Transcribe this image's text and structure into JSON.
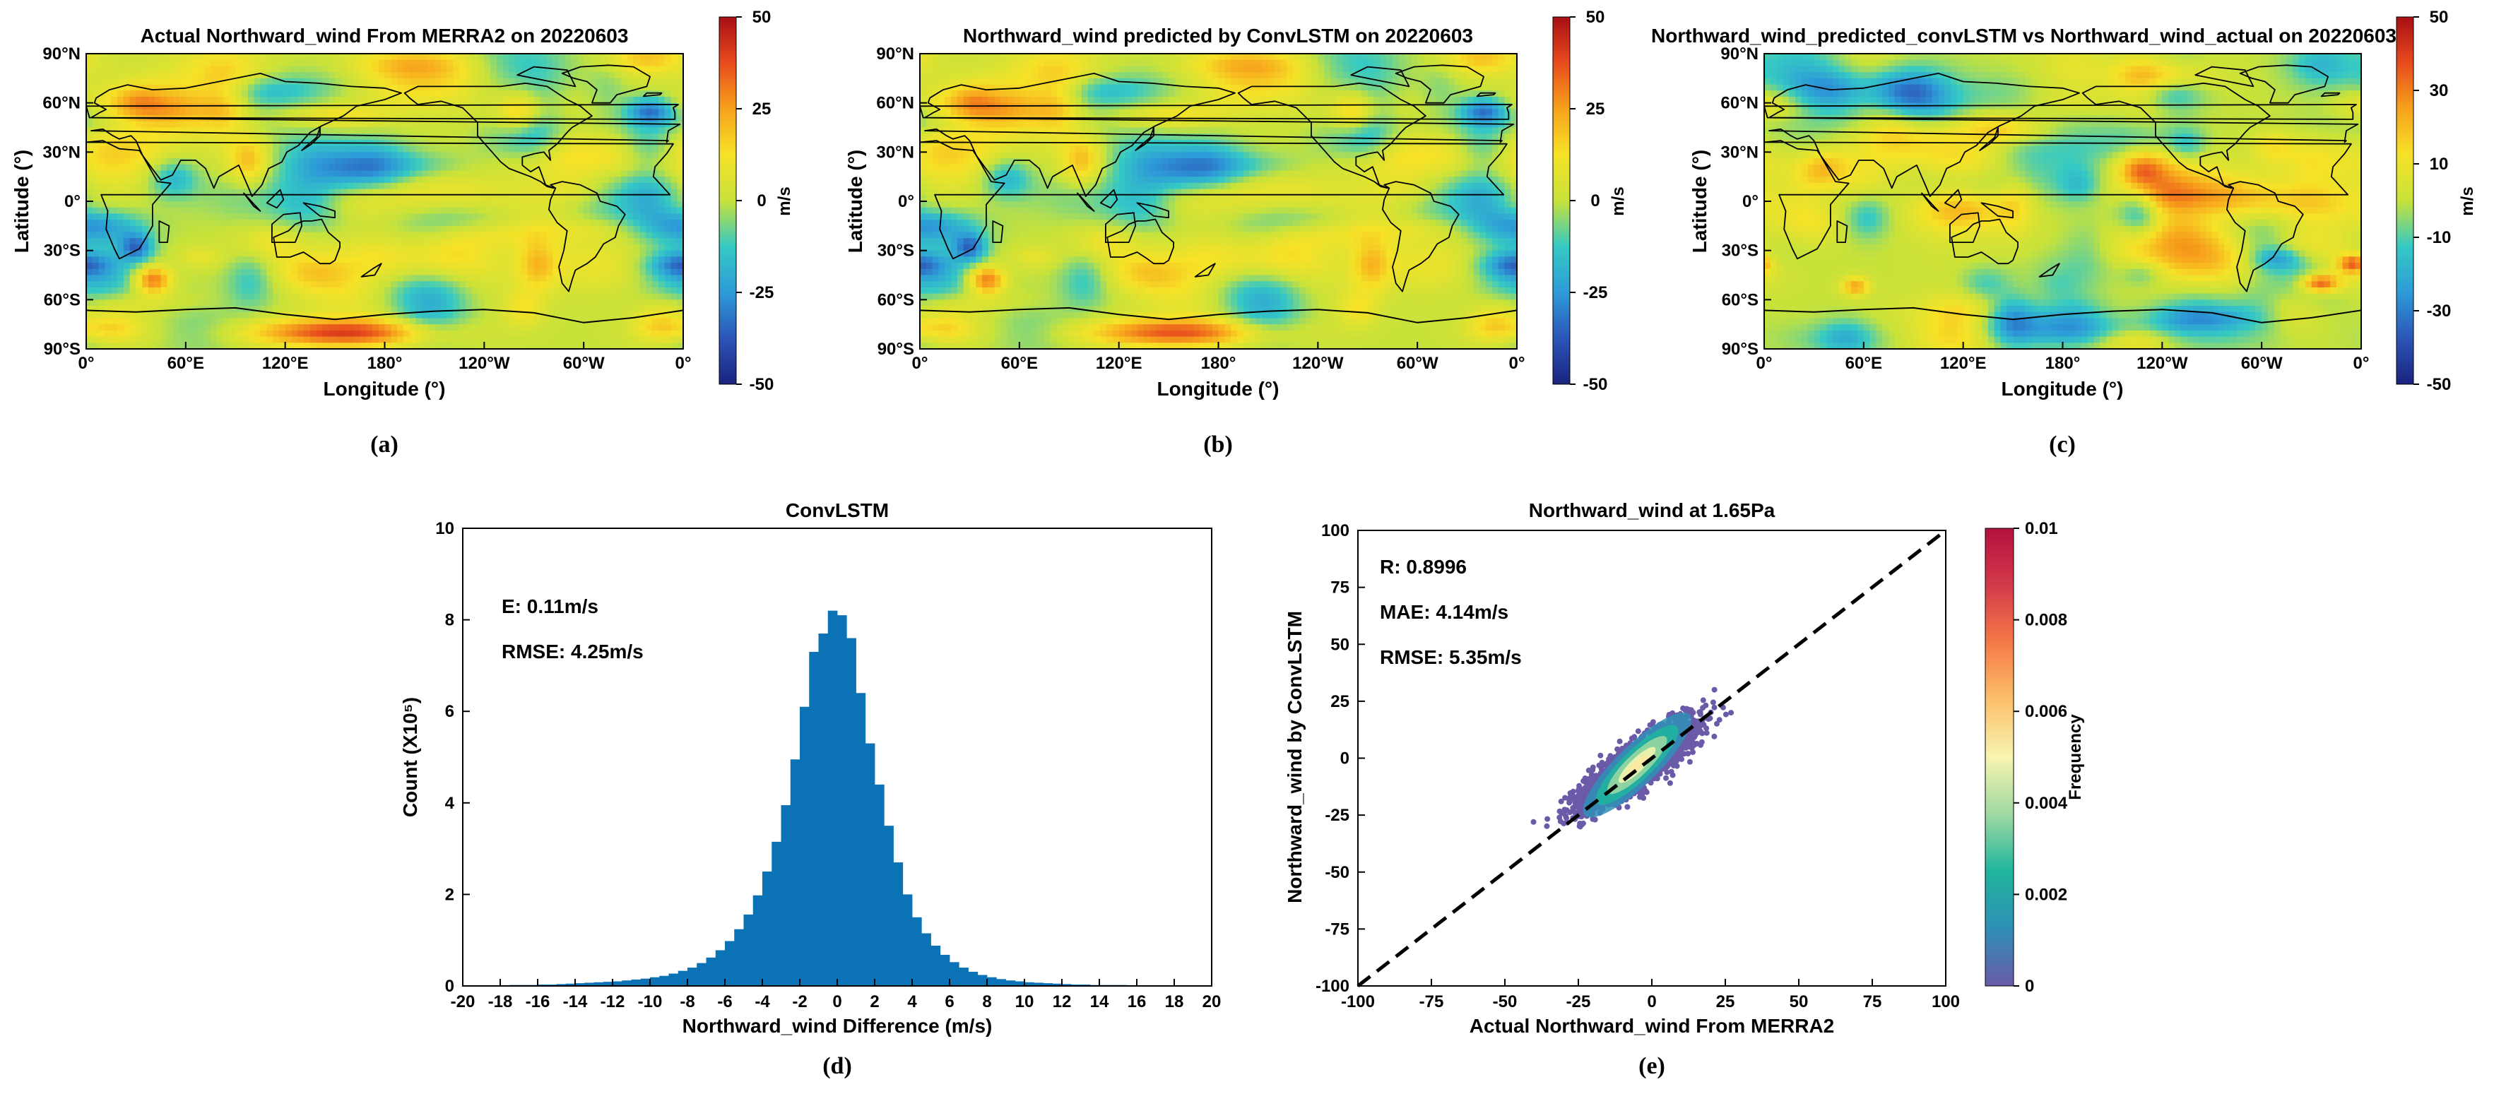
{
  "chart_data": [
    {
      "type": "heatmap",
      "panel_label": "(a)",
      "title": "Actual Northward_wind From MERRA2 on 20220603",
      "xlabel": "Longitude (°)",
      "ylabel": "Latitude (°)",
      "x_ticks": [
        "0°",
        "60°E",
        "120°E",
        "180°",
        "120°W",
        "60°W",
        "0°"
      ],
      "y_ticks": [
        "90°N",
        "60°N",
        "30°N",
        "0°",
        "30°S",
        "60°S",
        "90°S"
      ],
      "colorbar": {
        "label": "m/s",
        "ticks": [
          "50",
          "25",
          "0",
          "-25",
          "-50"
        ],
        "range": [
          -50,
          50
        ]
      },
      "seed": 11,
      "south_band": 1.0
    },
    {
      "type": "heatmap",
      "panel_label": "(b)",
      "title": "Northward_wind predicted by ConvLSTM on 20220603",
      "xlabel": "Longitude (°)",
      "ylabel": "Latitude (°)",
      "x_ticks": [
        "0°",
        "60°E",
        "120°E",
        "180°",
        "120°W",
        "60°W",
        "0°"
      ],
      "y_ticks": [
        "90°N",
        "60°N",
        "30°N",
        "0°",
        "30°S",
        "60°S",
        "90°S"
      ],
      "colorbar": {
        "label": "m/s",
        "ticks": [
          "50",
          "25",
          "0",
          "-25",
          "-50"
        ],
        "range": [
          -50,
          50
        ]
      },
      "seed": 11,
      "south_band": 0.9
    },
    {
      "type": "heatmap",
      "panel_label": "(c)",
      "title": "Northward_wind_predicted_convLSTM vs Northward_wind_actual on 20220603",
      "xlabel": "Longitude (°)",
      "ylabel": "Latitude (°)",
      "x_ticks": [
        "0°",
        "60°E",
        "120°E",
        "180°",
        "120°W",
        "60°W",
        "0°"
      ],
      "y_ticks": [
        "90°N",
        "60°N",
        "30°N",
        "0°",
        "30°S",
        "60°S",
        "90°S"
      ],
      "colorbar": {
        "label": "m/s",
        "ticks": [
          "50",
          "30",
          "10",
          "-10",
          "-30",
          "-50"
        ],
        "range": [
          -50,
          50
        ]
      },
      "seed": 37,
      "south_band": 0.0
    },
    {
      "type": "bar",
      "panel_label": "(d)",
      "title": "ConvLSTM",
      "xlabel": "Northward_wind Difference (m/s)",
      "ylabel": "Count (X10⁵)",
      "xlim": [
        -20,
        20
      ],
      "ylim": [
        0,
        10
      ],
      "x_ticks": [
        -20,
        -18,
        -16,
        -14,
        -12,
        -10,
        -8,
        -6,
        -4,
        -2,
        0,
        2,
        4,
        6,
        8,
        10,
        12,
        14,
        16,
        18,
        20
      ],
      "y_ticks": [
        0,
        2,
        4,
        6,
        8,
        10
      ],
      "bin_width": 0.5,
      "bin_start": -20,
      "counts": [
        0.01,
        0.01,
        0.01,
        0.01,
        0.01,
        0.02,
        0.02,
        0.02,
        0.03,
        0.03,
        0.04,
        0.05,
        0.06,
        0.07,
        0.08,
        0.09,
        0.1,
        0.12,
        0.14,
        0.16,
        0.19,
        0.22,
        0.27,
        0.33,
        0.4,
        0.5,
        0.62,
        0.78,
        0.98,
        1.24,
        1.56,
        1.98,
        2.5,
        3.15,
        3.95,
        4.95,
        6.1,
        7.3,
        7.7,
        8.2,
        8.1,
        7.6,
        6.4,
        5.3,
        4.4,
        3.5,
        2.7,
        2.0,
        1.5,
        1.15,
        0.88,
        0.68,
        0.52,
        0.4,
        0.31,
        0.24,
        0.19,
        0.15,
        0.12,
        0.1,
        0.08,
        0.07,
        0.06,
        0.05,
        0.04,
        0.03,
        0.03,
        0.02,
        0.02,
        0.02,
        0.02,
        0.01,
        0.01,
        0.01,
        0.01,
        0.01,
        0.01,
        0.01,
        0.01,
        0.01
      ],
      "annotations": [
        "E: 0.11m/s",
        "RMSE: 4.25m/s"
      ]
    },
    {
      "type": "scatter",
      "panel_label": "(e)",
      "title": "Northward_wind at 1.65Pa",
      "xlabel": "Actual Northward_wind From MERRA2",
      "ylabel": "Northward_wind by ConvLSTM",
      "xlim": [
        -100,
        100
      ],
      "ylim": [
        -100,
        100
      ],
      "x_ticks": [
        -100,
        -75,
        -50,
        -25,
        0,
        25,
        50,
        75,
        100
      ],
      "y_ticks": [
        -100,
        -75,
        -50,
        -25,
        0,
        25,
        50,
        75,
        100
      ],
      "reference_line": {
        "from": [
          -100,
          -100
        ],
        "to": [
          100,
          100
        ],
        "style": "dashed"
      },
      "annotations": [
        "R: 0.8996",
        "MAE: 4.14m/s",
        "RMSE: 5.35m/s"
      ],
      "colorbar": {
        "label": "Frequency",
        "ticks": [
          "0.01",
          "0.008",
          "0.006",
          "0.004",
          "0.002",
          "0"
        ],
        "range": [
          0,
          0.01
        ]
      },
      "cloud": {
        "center": [
          -5,
          -3
        ],
        "sd_along": 13,
        "sd_across": 3.6,
        "slope_deg": 44,
        "x_range": [
          -50,
          35
        ],
        "y_range": [
          -33,
          37
        ]
      }
    }
  ],
  "colors": {
    "bar_fill": "#0a72b5",
    "jet_scale": [
      "#1a237e",
      "#2c55b8",
      "#2d9bd8",
      "#35c9c4",
      "#c8e23a",
      "#f6e227",
      "#f7a21c",
      "#e84b1d",
      "#a80f14"
    ],
    "frequency_scale": [
      "#6a5aa8",
      "#2f8fb6",
      "#1fb59e",
      "#9fd9a1",
      "#f8f4b0",
      "#fcc06b",
      "#f57a47",
      "#d33a4a",
      "#b2123f"
    ]
  }
}
